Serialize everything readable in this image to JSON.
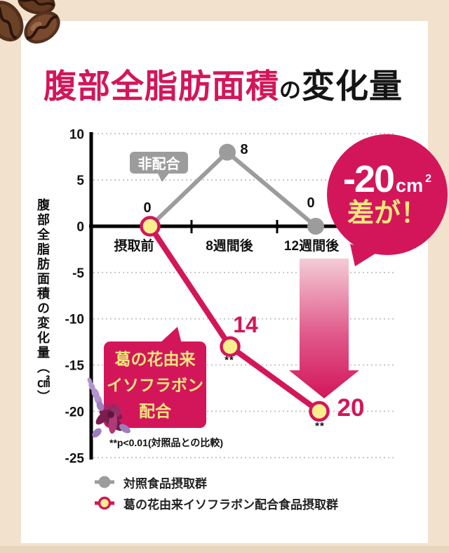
{
  "colors": {
    "accent_pink": "#d3165a",
    "series_gray": "#9c9c9c",
    "marker_yellow": "#f9ef8e",
    "bubble_text_yellow": "#f3e87d",
    "background_beige": "#f2e2cd",
    "bottom_strip_beige": "#e9d5bb"
  },
  "icons": {
    "top_left": "coffee-beans",
    "bubble_decoration": "kudzu-flower",
    "emphasis": "down-arrow-gradient"
  },
  "title": {
    "highlight": "腹部全脂肪面積",
    "particle": "の",
    "rest": "変化量"
  },
  "chart_data": {
    "type": "line",
    "title": "腹部全脂肪面積の変化量",
    "ylabel": "腹部全脂肪面積の変化量（㎠）",
    "xlabel": "",
    "categories": [
      "摂取前",
      "8週間後",
      "12週間後"
    ],
    "ylim": [
      -25,
      10
    ],
    "yticks": [
      10,
      5,
      0,
      -5,
      -10,
      -15,
      -20,
      -25
    ],
    "grid": "horizontal-dotted",
    "legend_position": "bottom",
    "series": [
      {
        "name": "対照食品摂取群",
        "bubble_label": "非配合",
        "color": "#9c9c9c",
        "values": [
          0,
          8,
          0
        ],
        "point_labels": [
          "0",
          "8",
          "0"
        ]
      },
      {
        "name": "葛の花由来イソフラボン配合食品摂取群",
        "bubble_label": "葛の花由来イソフラボン配合",
        "color": "#d3165a",
        "marker_fill": "#f9ef8e",
        "values": [
          0,
          -14,
          -20
        ],
        "point_labels": [
          "0",
          "14",
          "20"
        ],
        "significance": [
          "",
          "**",
          "**"
        ]
      }
    ]
  },
  "annotations": {
    "control_bubble": "非配合",
    "treatment_bubble": {
      "lines": [
        "葛の花由来",
        "イソフラボン",
        "配合"
      ]
    },
    "badge": {
      "value": "-20",
      "unit": "cm",
      "unit_sup": "2",
      "line2": "差が！"
    },
    "footnote": "**p<0.01(対照品との比較)"
  },
  "legend": {
    "items": [
      {
        "label": "対照食品摂取群"
      },
      {
        "label": "葛の花由来イソフラボン配合食品摂取群"
      }
    ]
  }
}
